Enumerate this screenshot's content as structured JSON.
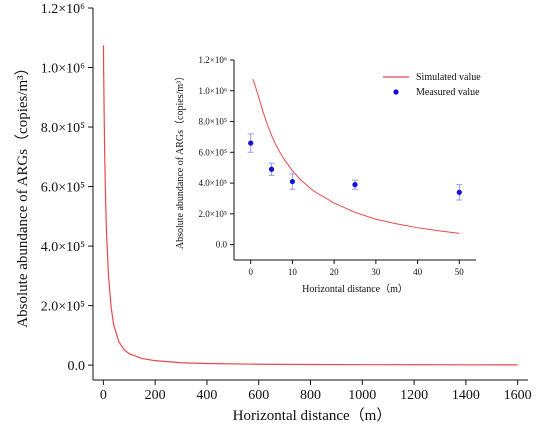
{
  "chart_data": [
    {
      "id": "main",
      "type": "line",
      "title": "",
      "xlabel": "Horizontal distance（m）",
      "ylabel": "Absolute abundance of ARGs（copies/m³）",
      "xlim": [
        -40,
        1640
      ],
      "ylim": [
        -50000,
        1200000
      ],
      "xticks": [
        0,
        200,
        400,
        600,
        800,
        1000,
        1200,
        1400,
        1600
      ],
      "xtick_labels": [
        "0",
        "200",
        "400",
        "600",
        "800",
        "1000",
        "1200",
        "1400",
        "1600"
      ],
      "yticks": [
        0,
        200000,
        400000,
        600000,
        800000,
        1000000,
        1200000
      ],
      "ytick_labels": [
        "0.0",
        "2.0×10⁵",
        "4.0×10⁵",
        "6.0×10⁵",
        "8.0×10⁵",
        "1.0×10⁶",
        "1.2×10⁶"
      ],
      "grid": false,
      "series": [
        {
          "color": "#e8474c",
          "x": [
            0.5,
            1,
            2,
            3,
            5,
            8,
            12,
            20,
            30,
            40,
            60,
            80,
            100,
            150,
            200,
            300,
            400,
            600,
            800,
            1000,
            1200,
            1400,
            1600
          ],
          "y": [
            1075000,
            1000000,
            930000,
            850000,
            720000,
            580000,
            450000,
            300000,
            195000,
            135000,
            78000,
            52000,
            38000,
            22000,
            15000,
            8000,
            5500,
            3000,
            2000,
            1500,
            1200,
            1000,
            900
          ]
        }
      ]
    },
    {
      "id": "inset",
      "type": "line",
      "title": "",
      "xlabel": "Horizontal distance（m）",
      "ylabel": "Absolute abundance of ARGs（copies/m³）",
      "xlim": [
        -4,
        54
      ],
      "ylim": [
        -100000,
        1200000
      ],
      "xticks": [
        0,
        10,
        20,
        30,
        40,
        50
      ],
      "xtick_labels": [
        "0",
        "10",
        "20",
        "30",
        "40",
        "50"
      ],
      "yticks": [
        0,
        200000,
        400000,
        600000,
        800000,
        1000000,
        1200000
      ],
      "ytick_labels": [
        "0.0",
        "2.0×10⁵",
        "4.0×10⁵",
        "6.0×10⁵",
        "8.0×10⁵",
        "1.0×10⁶",
        "1.2×10⁶"
      ],
      "grid": false,
      "legend_position": "top-right",
      "series": [
        {
          "name": "Simulated value",
          "kind": "line",
          "color": "#e8474c",
          "x": [
            0.5,
            1,
            2,
            3,
            4,
            5,
            6,
            7,
            8,
            10,
            12,
            15,
            20,
            25,
            30,
            35,
            40,
            45,
            50
          ],
          "y": [
            1075000,
            1040000,
            950000,
            860000,
            780000,
            710000,
            650000,
            600000,
            555000,
            480000,
            420000,
            350000,
            270000,
            210000,
            165000,
            135000,
            110000,
            90000,
            73000
          ]
        },
        {
          "name": "Measured value",
          "kind": "scatter",
          "color": "#1010d8",
          "errorbar_color": "#9b9be6",
          "x": [
            0,
            5,
            10,
            25,
            50
          ],
          "y": [
            660000,
            490000,
            410000,
            390000,
            340000
          ],
          "err": [
            60000,
            40000,
            50000,
            30000,
            50000
          ]
        }
      ]
    }
  ]
}
